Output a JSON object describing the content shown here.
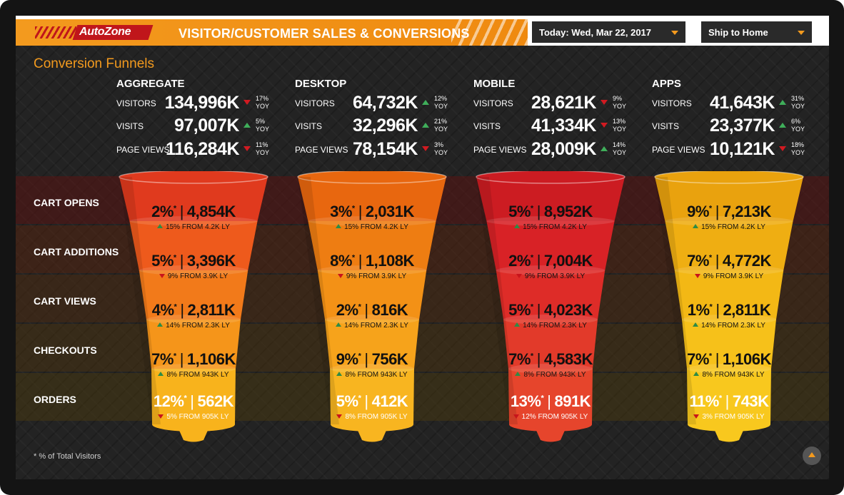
{
  "header": {
    "brand": "AutoZone",
    "title": "VISITOR/CUSTOMER SALES & CONVERSIONS",
    "date_dropdown": "Today: Wed, Mar 22, 2017",
    "channel_dropdown": "Ship to Home",
    "accent_color": "#f39a1e",
    "brand_color": "#c0161b"
  },
  "section_title": "Conversion Funnels",
  "stages": [
    "CART OPENS",
    "CART ADDITIONS",
    "CART VIEWS",
    "CHECKOUTS",
    "ORDERS"
  ],
  "stat_labels": [
    "VISITORS",
    "VISITS",
    "PAGE VIEWS"
  ],
  "segments": [
    {
      "name": "AGGREGATE",
      "funnel_color": "orange-red",
      "stats": [
        {
          "value": "134,996K",
          "trend": "down",
          "pct": "17%",
          "yoy": "YOY"
        },
        {
          "value": "97,007K",
          "trend": "up",
          "pct": "5%",
          "yoy": "YOY"
        },
        {
          "value": "116,284K",
          "trend": "down",
          "pct": "11%",
          "yoy": "YOY"
        }
      ],
      "funnel": [
        {
          "pct": "2%",
          "star": "*",
          "count": "4,854K",
          "trend": "up",
          "change": "15% FROM 4.2K LY"
        },
        {
          "pct": "5%",
          "star": "*",
          "count": "3,396K",
          "trend": "down",
          "change": "9% FROM 3.9K LY"
        },
        {
          "pct": "4%",
          "star": "*",
          "count": "2,811K",
          "trend": "up",
          "change": "14% FROM 2.3K LY"
        },
        {
          "pct": "7%",
          "star": "*",
          "count": "1,106K",
          "trend": "up",
          "change": "8% FROM 943K LY"
        },
        {
          "pct": "12%",
          "star": "*",
          "count": "562K",
          "trend": "down",
          "change": "5% FROM 905K LY"
        }
      ]
    },
    {
      "name": "DESKTOP",
      "funnel_color": "orange",
      "stats": [
        {
          "value": "64,732K",
          "trend": "up",
          "pct": "12%",
          "yoy": "YOY"
        },
        {
          "value": "32,296K",
          "trend": "up",
          "pct": "21%",
          "yoy": "YOY"
        },
        {
          "value": "78,154K",
          "trend": "down",
          "pct": "3%",
          "yoy": "YOY"
        }
      ],
      "funnel": [
        {
          "pct": "3%",
          "star": "*",
          "count": "2,031K",
          "trend": "up",
          "change": "15% FROM 4.2K LY"
        },
        {
          "pct": "8%",
          "star": "*",
          "count": "1,108K",
          "trend": "down",
          "change": "9% FROM 3.9K LY"
        },
        {
          "pct": "2%",
          "star": "*",
          "count": "816K",
          "trend": "up",
          "change": "14% FROM 2.3K LY"
        },
        {
          "pct": "9%",
          "star": "*",
          "count": "756K",
          "trend": "up",
          "change": "8% FROM 943K LY"
        },
        {
          "pct": "5%",
          "star": "*",
          "count": "412K",
          "trend": "down",
          "change": "8% FROM 905K LY"
        }
      ]
    },
    {
      "name": "MOBILE",
      "funnel_color": "red",
      "stats": [
        {
          "value": "28,621K",
          "trend": "down",
          "pct": "9%",
          "yoy": "YOY"
        },
        {
          "value": "41,334K",
          "trend": "down",
          "pct": "13%",
          "yoy": "YOY"
        },
        {
          "value": "28,009K",
          "trend": "up",
          "pct": "14%",
          "yoy": "YOY"
        }
      ],
      "funnel": [
        {
          "pct": "5%",
          "star": "*",
          "count": "8,952K",
          "trend": "up",
          "change": "15% FROM 4.2K LY"
        },
        {
          "pct": "2%",
          "star": "*",
          "count": "7,004K",
          "trend": "down",
          "change": "9% FROM 3.9K LY"
        },
        {
          "pct": "5%",
          "star": "*",
          "count": "4,023K",
          "trend": "up",
          "change": "14% FROM 2.3K LY"
        },
        {
          "pct": "7%",
          "star": "*",
          "count": "4,583K",
          "trend": "up",
          "change": "8% FROM 943K LY"
        },
        {
          "pct": "13%",
          "star": "*",
          "count": "891K",
          "trend": "down",
          "change": "12% FROM 905K LY"
        }
      ]
    },
    {
      "name": "APPS",
      "funnel_color": "yellow",
      "stats": [
        {
          "value": "41,643K",
          "trend": "up",
          "pct": "31%",
          "yoy": "YOY"
        },
        {
          "value": "23,377K",
          "trend": "up",
          "pct": "6%",
          "yoy": "YOY"
        },
        {
          "value": "10,121K",
          "trend": "down",
          "pct": "18%",
          "yoy": "YOY"
        }
      ],
      "funnel": [
        {
          "pct": "9%",
          "star": "*",
          "count": "7,213K",
          "trend": "up",
          "change": "15% FROM 4.2K LY"
        },
        {
          "pct": "7%",
          "star": "*",
          "count": "4,772K",
          "trend": "down",
          "change": "9% FROM 3.9K LY"
        },
        {
          "pct": "1%",
          "star": "*",
          "count": "2,811K",
          "trend": "up",
          "change": "14% FROM 2.3K LY"
        },
        {
          "pct": "7%",
          "star": "*",
          "count": "1,106K",
          "trend": "up",
          "change": "8% FROM 943K LY"
        },
        {
          "pct": "11%",
          "star": "*",
          "count": "743K",
          "trend": "down",
          "change": "3% FROM 905K LY"
        }
      ]
    }
  ],
  "footnote": "* % of Total Visitors",
  "icons": {
    "scroll_top": "chevron-up-icon",
    "dropdown": "caret-down-icon"
  },
  "colors": {
    "up": "#3fae5a",
    "down": "#d11a21"
  }
}
